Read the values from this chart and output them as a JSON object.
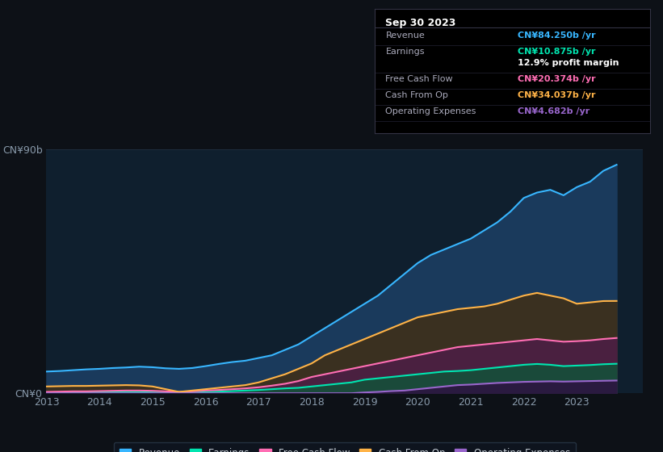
{
  "bg_color": "#0d1117",
  "plot_bg": "#0f1f2e",
  "years": [
    2013,
    2013.25,
    2013.5,
    2013.75,
    2014,
    2014.25,
    2014.5,
    2014.75,
    2015,
    2015.25,
    2015.5,
    2015.75,
    2016,
    2016.25,
    2016.5,
    2016.75,
    2017,
    2017.25,
    2017.5,
    2017.75,
    2018,
    2018.25,
    2018.5,
    2018.75,
    2019,
    2019.25,
    2019.5,
    2019.75,
    2020,
    2020.25,
    2020.5,
    2020.75,
    2021,
    2021.25,
    2021.5,
    2021.75,
    2022,
    2022.25,
    2022.5,
    2022.75,
    2023,
    2023.25,
    2023.5,
    2023.75
  ],
  "revenue": [
    8.0,
    8.2,
    8.5,
    8.8,
    9.0,
    9.3,
    9.5,
    9.8,
    9.6,
    9.2,
    9.0,
    9.3,
    10.0,
    10.8,
    11.5,
    12.0,
    13.0,
    14.0,
    16.0,
    18.0,
    21.0,
    24.0,
    27.0,
    30.0,
    33.0,
    36.0,
    40.0,
    44.0,
    48.0,
    51.0,
    53.0,
    55.0,
    57.0,
    60.0,
    63.0,
    67.0,
    72.0,
    74.0,
    75.0,
    73.0,
    76.0,
    78.0,
    82.0,
    84.25
  ],
  "earnings": [
    0.3,
    0.35,
    0.4,
    0.4,
    0.5,
    0.5,
    0.5,
    0.4,
    0.3,
    0.2,
    0.1,
    0.2,
    0.4,
    0.6,
    0.8,
    1.0,
    1.2,
    1.5,
    1.8,
    2.0,
    2.5,
    3.0,
    3.5,
    4.0,
    5.0,
    5.5,
    6.0,
    6.5,
    7.0,
    7.5,
    8.0,
    8.2,
    8.5,
    9.0,
    9.5,
    10.0,
    10.5,
    10.8,
    10.5,
    10.0,
    10.2,
    10.4,
    10.7,
    10.875
  ],
  "free_cash_flow": [
    0.5,
    0.6,
    0.7,
    0.7,
    0.8,
    0.9,
    1.0,
    1.0,
    0.9,
    0.7,
    0.5,
    0.7,
    1.0,
    1.2,
    1.5,
    1.8,
    2.2,
    2.8,
    3.5,
    4.5,
    6.0,
    7.0,
    8.0,
    9.0,
    10.0,
    11.0,
    12.0,
    13.0,
    14.0,
    15.0,
    16.0,
    17.0,
    17.5,
    18.0,
    18.5,
    19.0,
    19.5,
    20.0,
    19.5,
    19.0,
    19.2,
    19.5,
    20.0,
    20.374
  ],
  "cash_from_op": [
    2.5,
    2.6,
    2.7,
    2.7,
    2.8,
    2.9,
    3.0,
    2.9,
    2.5,
    1.5,
    0.5,
    1.0,
    1.5,
    2.0,
    2.5,
    3.0,
    4.0,
    5.5,
    7.0,
    9.0,
    11.0,
    14.0,
    16.0,
    18.0,
    20.0,
    22.0,
    24.0,
    26.0,
    28.0,
    29.0,
    30.0,
    31.0,
    31.5,
    32.0,
    33.0,
    34.5,
    36.0,
    37.0,
    36.0,
    35.0,
    33.0,
    33.5,
    34.0,
    34.037
  ],
  "operating_expenses": [
    0.0,
    0.0,
    0.0,
    0.0,
    0.0,
    0.0,
    0.0,
    0.0,
    0.0,
    0.0,
    0.0,
    0.0,
    0.0,
    0.0,
    0.0,
    0.0,
    0.0,
    0.0,
    0.0,
    0.0,
    0.0,
    0.0,
    0.0,
    0.0,
    0.3,
    0.5,
    0.8,
    1.0,
    1.5,
    2.0,
    2.5,
    3.0,
    3.2,
    3.5,
    3.8,
    4.0,
    4.2,
    4.3,
    4.4,
    4.3,
    4.4,
    4.5,
    4.6,
    4.682
  ],
  "revenue_color": "#38b6ff",
  "earnings_color": "#00e5b0",
  "free_cash_flow_color": "#ff6eb4",
  "cash_from_op_color": "#ffb347",
  "operating_expenses_color": "#9966cc",
  "revenue_fill": "#1a3a5c",
  "earnings_fill": "#1a4a3a",
  "free_cash_flow_fill": "#4a2040",
  "cash_from_op_fill": "#3a3020",
  "operating_expenses_fill": "#2a1a40",
  "grid_color": "#1e2d3d",
  "text_color": "#c8d0d8",
  "tick_color": "#8899aa",
  "ymax": 90,
  "info_title": "Sep 30 2023",
  "info_rows": [
    {
      "label": "Revenue",
      "value": "CN¥84.250b /yr",
      "color": "#38b6ff"
    },
    {
      "label": "Earnings",
      "value": "CN¥10.875b /yr",
      "color": "#00e5b0"
    },
    {
      "label": "",
      "value": "12.9% profit margin",
      "color": "#ffffff"
    },
    {
      "label": "Free Cash Flow",
      "value": "CN¥20.374b /yr",
      "color": "#ff6eb4"
    },
    {
      "label": "Cash From Op",
      "value": "CN¥34.037b /yr",
      "color": "#ffb347"
    },
    {
      "label": "Operating Expenses",
      "value": "CN¥4.682b /yr",
      "color": "#9966cc"
    }
  ],
  "legend_entries": [
    {
      "label": "Revenue",
      "color": "#38b6ff"
    },
    {
      "label": "Earnings",
      "color": "#00e5b0"
    },
    {
      "label": "Free Cash Flow",
      "color": "#ff6eb4"
    },
    {
      "label": "Cash From Op",
      "color": "#ffb347"
    },
    {
      "label": "Operating Expenses",
      "color": "#9966cc"
    }
  ],
  "x_ticks": [
    2013,
    2014,
    2015,
    2016,
    2017,
    2018,
    2019,
    2020,
    2021,
    2022,
    2023
  ]
}
